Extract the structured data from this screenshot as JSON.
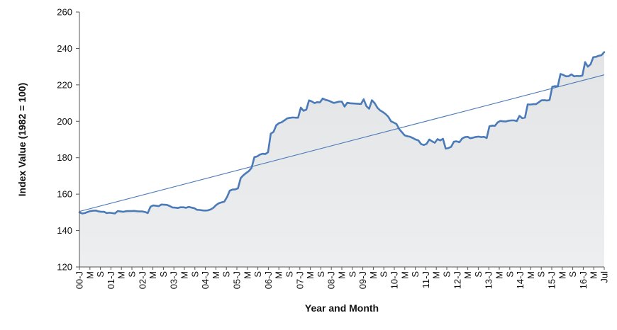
{
  "chart_data": {
    "type": "area",
    "title": "",
    "xlabel": "Year and Month",
    "ylabel": "Index Value (1982 = 100)",
    "ylim": [
      120,
      260
    ],
    "yticks": [
      120,
      140,
      160,
      180,
      200,
      220,
      240,
      260
    ],
    "x_tick_labels": [
      "00-J",
      "M",
      "S",
      "01-J",
      "M",
      "S",
      "02-J",
      "M",
      "S",
      "03-J",
      "M",
      "S",
      "04-J",
      "M",
      "S",
      "05-J",
      "M",
      "S",
      "06-J",
      "M",
      "S",
      "07-J",
      "M",
      "S",
      "08-J",
      "M",
      "S",
      "09-J",
      "M",
      "S",
      "10-J",
      "M",
      "S",
      "11-J",
      "M",
      "S",
      "12-J",
      "M",
      "S",
      "13-J",
      "M",
      "S",
      "14-J",
      "M",
      "S",
      "15-J",
      "M",
      "S",
      "16-J",
      "M",
      "Jul"
    ],
    "grid": false,
    "legend": "none",
    "colors": {
      "series_line": "#4a7ab8",
      "trend_line": "#4a7ab8",
      "area_fill": "#e6e7e8",
      "axis": "#555555"
    },
    "series": [
      {
        "values": [
          150.0,
          149.4,
          149.6,
          150.2,
          150.7,
          150.9,
          151.0,
          150.5,
          150.3,
          150.3,
          149.6,
          149.8,
          149.6,
          149.4,
          150.7,
          150.5,
          150.3,
          150.6,
          150.7,
          150.7,
          150.8,
          150.6,
          150.5,
          150.5,
          150.2,
          149.6,
          153.1,
          153.8,
          153.6,
          153.4,
          154.3,
          154.2,
          154.1,
          153.5,
          152.7,
          152.6,
          152.4,
          152.8,
          152.8,
          152.5,
          153.0,
          152.6,
          152.3,
          151.4,
          151.3,
          151.1,
          151.0,
          151.1,
          151.6,
          152.5,
          154.0,
          155.0,
          155.5,
          155.9,
          158.4,
          161.9,
          162.5,
          162.6,
          163.2,
          168.8,
          170.4,
          171.6,
          172.7,
          174.5,
          180.3,
          180.7,
          181.7,
          182.2,
          182.0,
          183.0,
          193.2,
          194.2,
          197.8,
          199.0,
          199.5,
          200.5,
          201.6,
          201.9,
          202.1,
          202.0,
          202.0,
          207.5,
          205.8,
          206.4,
          211.5,
          210.9,
          210.0,
          210.5,
          210.4,
          212.5,
          211.8,
          211.4,
          210.8,
          210.1,
          210.4,
          210.8,
          210.8,
          208.1,
          210.2,
          209.9,
          209.8,
          209.7,
          209.6,
          209.5,
          212.1,
          208.3,
          206.9,
          211.6,
          210.0,
          207.5,
          206.0,
          205.1,
          204.0,
          202.5,
          200.0,
          199.3,
          198.5,
          195.7,
          194.0,
          192.3,
          191.8,
          191.5,
          190.8,
          190.0,
          189.5,
          187.5,
          187.0,
          187.6,
          190.0,
          189.0,
          188.2,
          190.2,
          189.5,
          190.4,
          185.0,
          185.3,
          186.0,
          188.8,
          189.0,
          188.5,
          190.5,
          191.3,
          191.5,
          190.7,
          191.0,
          191.4,
          191.6,
          191.3,
          191.5,
          190.8,
          197.3,
          197.6,
          197.5,
          199.4,
          200.2,
          200.0,
          199.9,
          200.3,
          200.5,
          200.5,
          200.1,
          203.0,
          201.7,
          202.0,
          209.3,
          209.2,
          209.4,
          209.4,
          210.4,
          211.5,
          211.6,
          211.4,
          211.7,
          219.0,
          219.3,
          219.2,
          226.0,
          225.5,
          224.7,
          224.8,
          225.8,
          224.7,
          224.9,
          224.8,
          225.1,
          232.5,
          230.0,
          231.3,
          235.2,
          235.4,
          236.0,
          236.3,
          238.0
        ]
      }
    ],
    "trend_line": {
      "start": 150.5,
      "end": 225.5
    }
  }
}
